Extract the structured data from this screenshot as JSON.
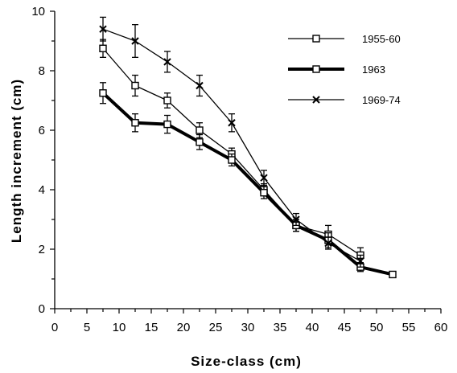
{
  "chart_data": {
    "type": "line",
    "xlabel": "Size-class    (cm)",
    "ylabel": "Length  increment  (cm)",
    "xlim": [
      0,
      60
    ],
    "ylim": [
      0,
      10
    ],
    "xticks": [
      0,
      5,
      10,
      15,
      20,
      25,
      30,
      35,
      40,
      45,
      50,
      55,
      60
    ],
    "yticks": [
      0,
      2,
      4,
      6,
      8,
      10
    ],
    "grid": false,
    "legend_position": "top-right",
    "series": [
      {
        "name": "1955-60",
        "marker": "square",
        "line_weight": "thin",
        "color": "#000000",
        "x": [
          7.5,
          12.5,
          17.5,
          22.5,
          27.5,
          32.5,
          37.5,
          42.5,
          47.5
        ],
        "y": [
          8.75,
          7.5,
          7.0,
          6.0,
          5.2,
          4.0,
          2.8,
          2.5,
          1.8
        ],
        "err": [
          0.3,
          0.35,
          0.25,
          0.25,
          0.2,
          0.2,
          0.2,
          0.3,
          0.25
        ]
      },
      {
        "name": "1963",
        "marker": "square",
        "line_weight": "thick",
        "color": "#000000",
        "x": [
          7.5,
          12.5,
          17.5,
          22.5,
          27.5,
          32.5,
          37.5,
          42.5,
          47.5,
          52.5
        ],
        "y": [
          7.25,
          6.25,
          6.2,
          5.6,
          5.0,
          3.9,
          2.8,
          2.3,
          1.4,
          1.15
        ],
        "err": [
          0.35,
          0.3,
          0.3,
          0.25,
          0.2,
          0.2,
          0.2,
          0.25,
          0.15,
          0.0
        ]
      },
      {
        "name": "1969-74",
        "marker": "x",
        "line_weight": "thin",
        "color": "#000000",
        "x": [
          7.5,
          12.5,
          17.5,
          22.5,
          27.5,
          32.5,
          37.5,
          42.5,
          47.5
        ],
        "y": [
          9.4,
          9.0,
          8.3,
          7.5,
          6.25,
          4.4,
          3.0,
          2.2,
          1.6
        ],
        "err": [
          0.4,
          0.55,
          0.35,
          0.35,
          0.3,
          0.25,
          0.2,
          0.2,
          0.2
        ]
      }
    ]
  }
}
